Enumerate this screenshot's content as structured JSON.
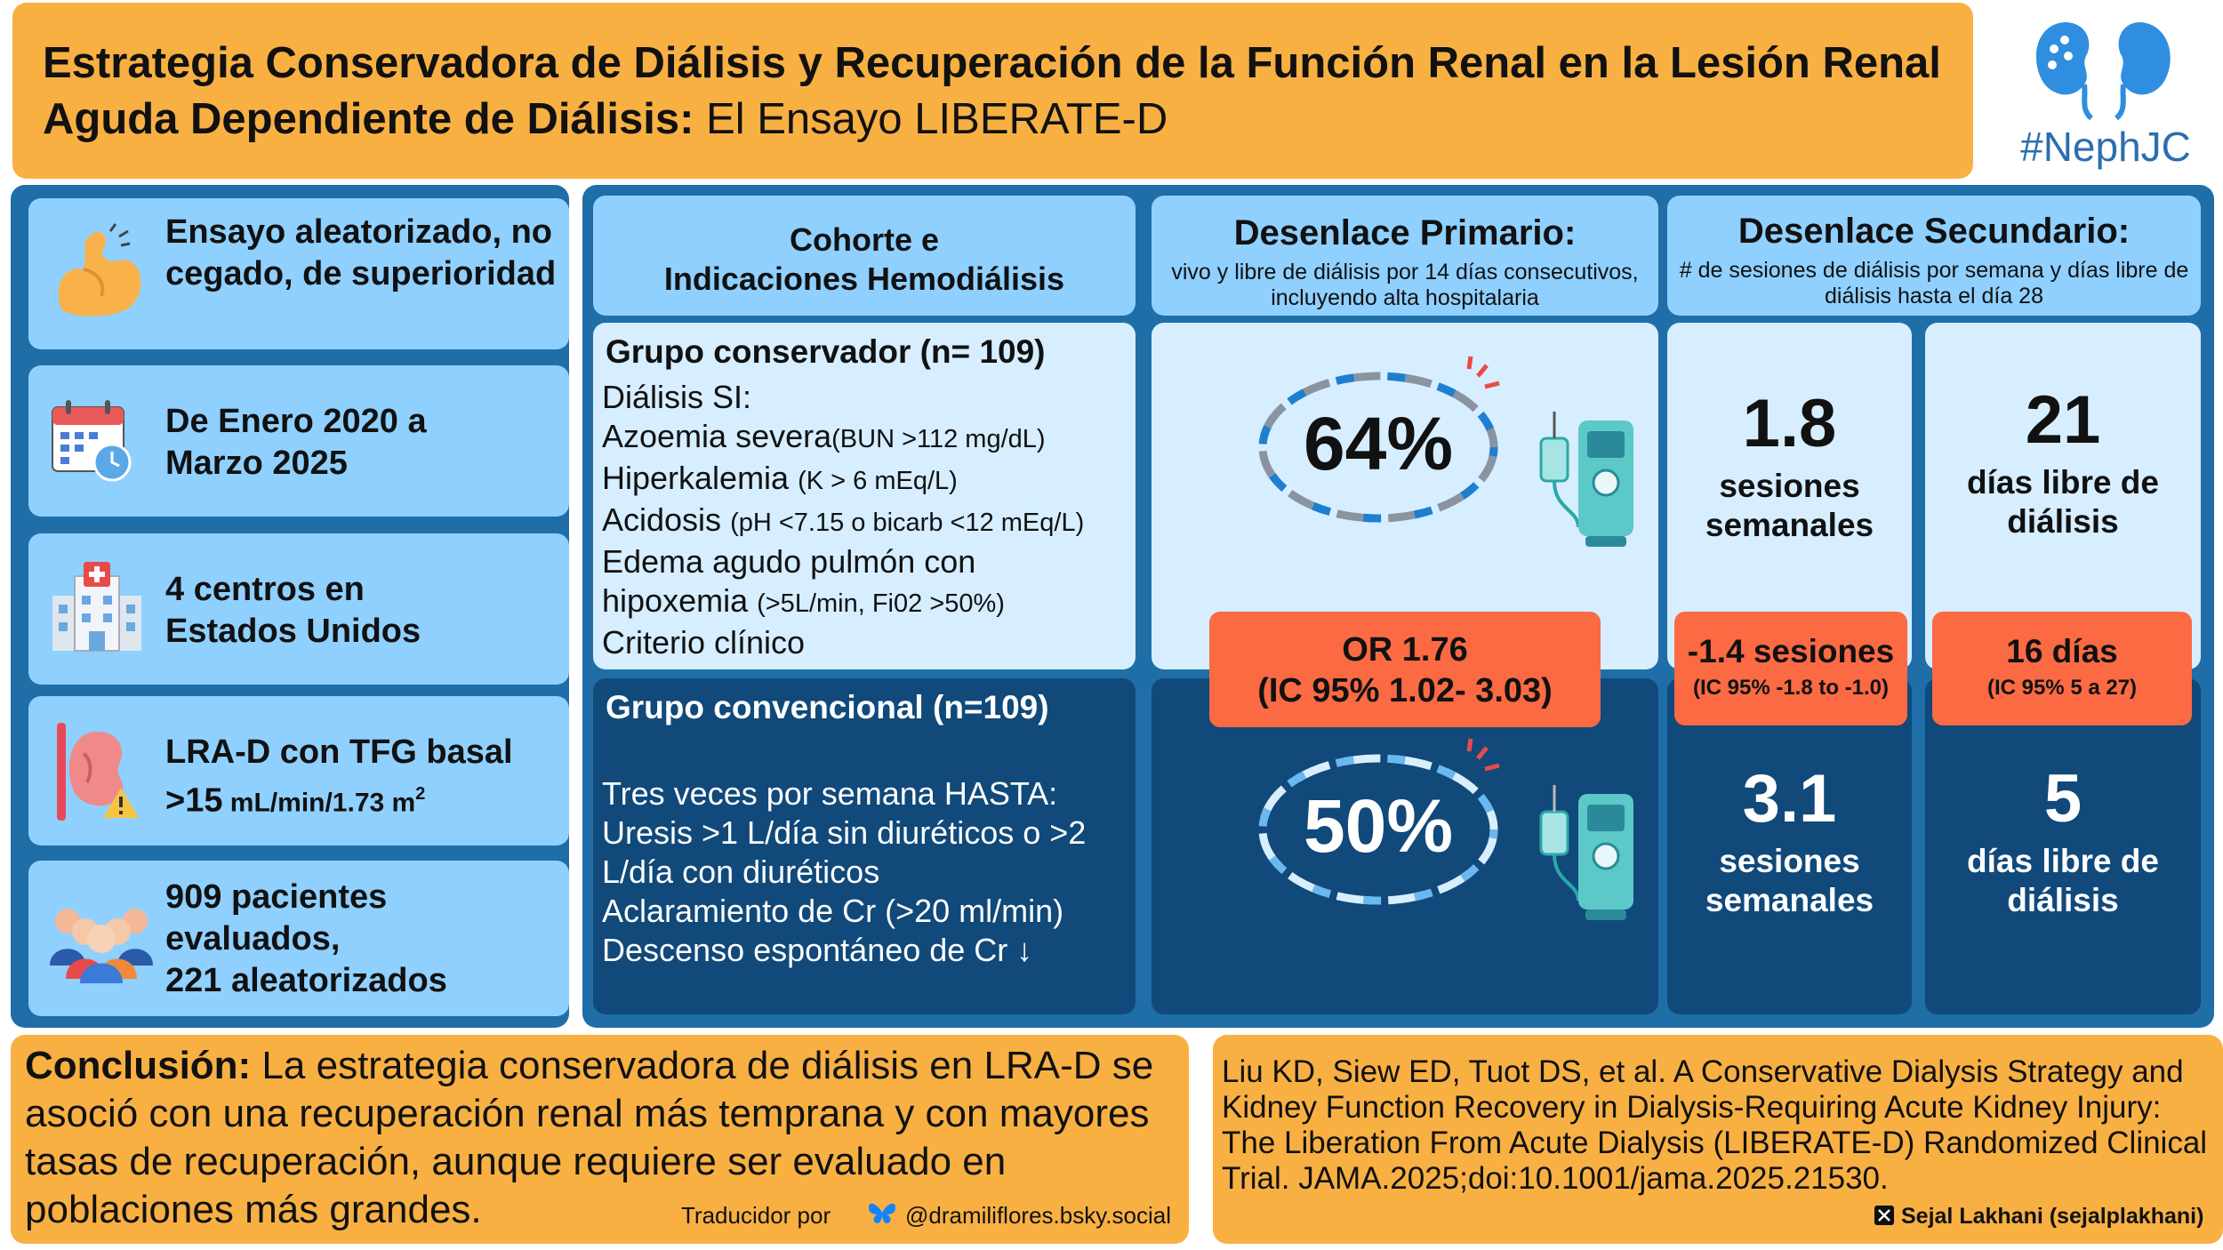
{
  "header": {
    "title_bold": "Estrategia Conservadora de Diálisis y Recuperación de la Función Renal en la Lesión Renal Aguda Dependiente de Diálisis:",
    "title_regular": " El Ensayo LIBERATE-D",
    "logo_text": "#NephJC"
  },
  "left": {
    "design": "Ensayo aleatorizado, no cegado, de superioridad",
    "dates_line1": "De Enero 2020 a",
    "dates_line2": "Marzo 2025",
    "centers_line1": "4 centros en",
    "centers_line2": "Estados Unidos",
    "lrad_line1": "LRA-D con TFG basal",
    "lrad_value": ">15",
    "lrad_unit": " mL/min/1.73 m",
    "lrad_sup": "2",
    "patients_line1": "909 pacientes",
    "patients_line2": "evaluados,",
    "patients_line3": "221 aleatorizados"
  },
  "columns": {
    "cohort_header_line1": "Cohorte e",
    "cohort_header_line2": "Indicaciones Hemodiálisis",
    "primary_title": "Desenlace Primario:",
    "primary_sub": "vivo y libre de diálisis por 14 días consecutivos, incluyendo alta hospitalaria",
    "secondary_title": "Desenlace Secundario:",
    "secondary_sub": "# de sesiones de diálisis por semana y días libre de diálisis hasta el día 28"
  },
  "conservative": {
    "title": "Grupo conservador (n= 109)",
    "l1": "Diálisis SI:",
    "l2a": "Azoemia severa",
    "l2b": "(BUN >112 mg/dL)",
    "l3a": "Hiperkalemia ",
    "l3b": "(K > 6 mEq/L)",
    "l4a": "Acidosis ",
    "l4b": "(pH <7.15 o bicarb <12 mEq/L)",
    "l5": "Edema agudo pulmón con",
    "l6a": "hipoxemia ",
    "l6b": "(>5L/min, Fi02 >50%)",
    "l7": "Criterio clínico"
  },
  "conventional": {
    "title": "Grupo convencional  (n=109)",
    "l1": "Tres veces por semana HASTA:",
    "l2": "Uresis >1 L/día sin diuréticos o >2",
    "l3": "L/día con diuréticos",
    "l4": "Aclaramiento de Cr  (>20 ml/min)",
    "l5": "Descenso espontáneo de Cr ↓"
  },
  "results": {
    "primary_conservative": "64%",
    "primary_conventional": "50%",
    "or_line1": "OR 1.76",
    "or_line2": "(IC 95% 1.02- 3.03)",
    "sessions_conservative": "1.8",
    "sessions_conservative_l1": "sesiones",
    "sessions_conservative_l2": "semanales",
    "sessions_diff": "-1.4 sesiones",
    "sessions_ci": "(IC 95% -1.8 to -1.0)",
    "sessions_conventional": "3.1",
    "sessions_conventional_l1": "sesiones",
    "sessions_conventional_l2": "semanales",
    "days_conservative": "21",
    "days_conservative_l1": "días libre de",
    "days_conservative_l2": "diálisis",
    "days_diff": "16 días",
    "days_ci": "(IC 95%  5 a 27)",
    "days_conventional": "5",
    "days_conventional_l1": "días libre de",
    "days_conventional_l2": "diálisis"
  },
  "conclusion": {
    "label": "Conclusión:",
    "text": " La estrategia conservadora de diálisis en LRA-D se asoció con una recuperación renal más temprana y con mayores tasas de recuperación, aunque requiere ser evaluado en poblaciones más grandes.",
    "translator_label": "Traducidor por",
    "translator_handle": "@dramiliflores.bsky.social"
  },
  "reference": {
    "text": "Liu KD, Siew ED, Tuot DS, et al. A Conservative Dialysis Strategy and Kidney Function Recovery in Dialysis-Requiring Acute Kidney Injury: The Liberation From Acute Dialysis (LIBERATE-D) Randomized Clinical Trial. JAMA.2025;doi:10.1001/jama.2025.21530.",
    "author": "Sejal Lakhani (sejalplakhani)"
  },
  "colors": {
    "orange": "#f8b043",
    "blue_dark": "#1f6ea8",
    "navy": "#10497a",
    "light_blue": "#8fd0ff",
    "pale_blue": "#d6eeff",
    "red": "#fb6a43",
    "teal": "#5cc8c8"
  },
  "icons": [
    "flexed-arm-icon",
    "calendar-icon",
    "hospital-icon",
    "kidney-warning-icon",
    "people-icon",
    "kidney-logo-icon",
    "chain-icon",
    "dialysis-machine-icon",
    "butterfly-icon",
    "x-icon"
  ]
}
